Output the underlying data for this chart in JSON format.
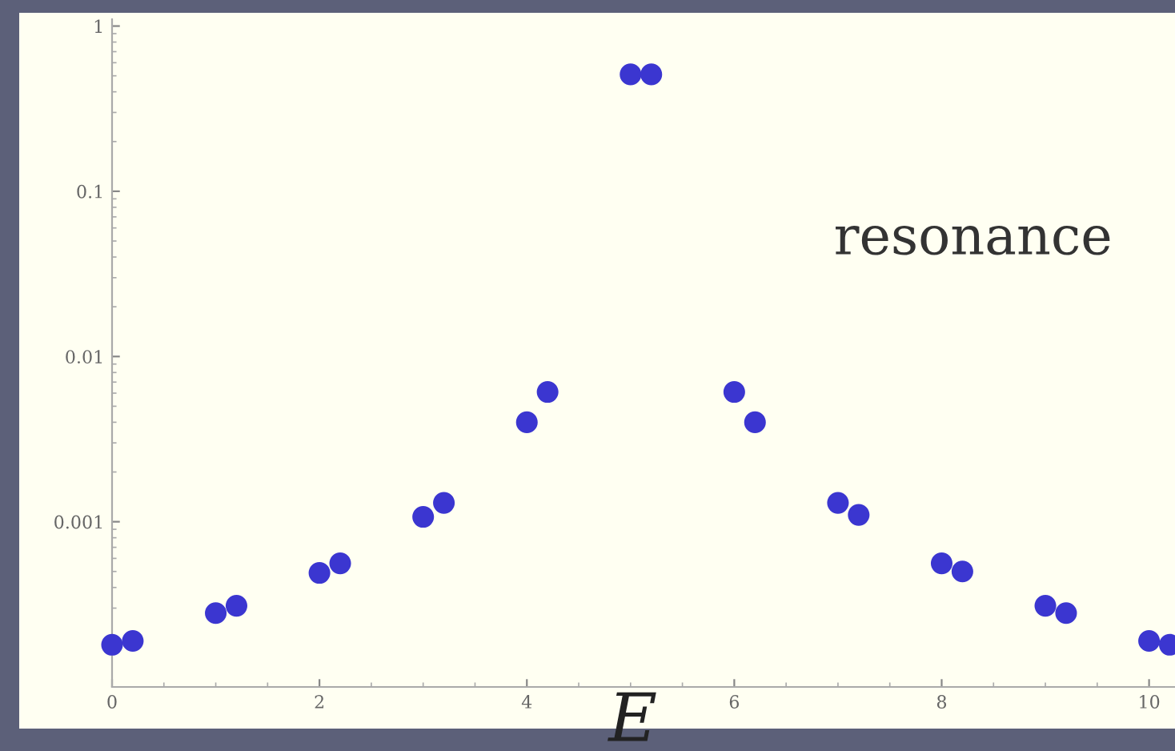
{
  "chart_data": {
    "type": "scatter",
    "xlabel": "E",
    "x": [
      0,
      0.2,
      1,
      1.2,
      2,
      2.2,
      3,
      3.2,
      4,
      4.2,
      5,
      5.2,
      6,
      6.2,
      7,
      7.2,
      8,
      8.2,
      9,
      9.2,
      10,
      10.2
    ],
    "series": [
      {
        "color": "#3b36d0",
        "values": [
          0.00018,
          0.00019,
          0.00028,
          0.00031,
          0.00049,
          0.00056,
          0.00107,
          0.0013,
          0.004,
          0.0061,
          0.51,
          0.51,
          0.0061,
          0.004,
          0.0013,
          0.0011,
          0.00056,
          0.0005,
          0.00031,
          0.00028,
          0.00019,
          0.00018
        ]
      }
    ],
    "log": "y",
    "xlim": [
      0,
      10.25
    ],
    "ylim": [
      0.0001,
      1.1
    ],
    "xticks": [
      0,
      2,
      4,
      6,
      8,
      10
    ],
    "yticks": [
      1,
      0.1,
      0.01,
      0.001
    ],
    "marker": "circle",
    "grid": false,
    "annotations": [
      "resonance"
    ]
  }
}
